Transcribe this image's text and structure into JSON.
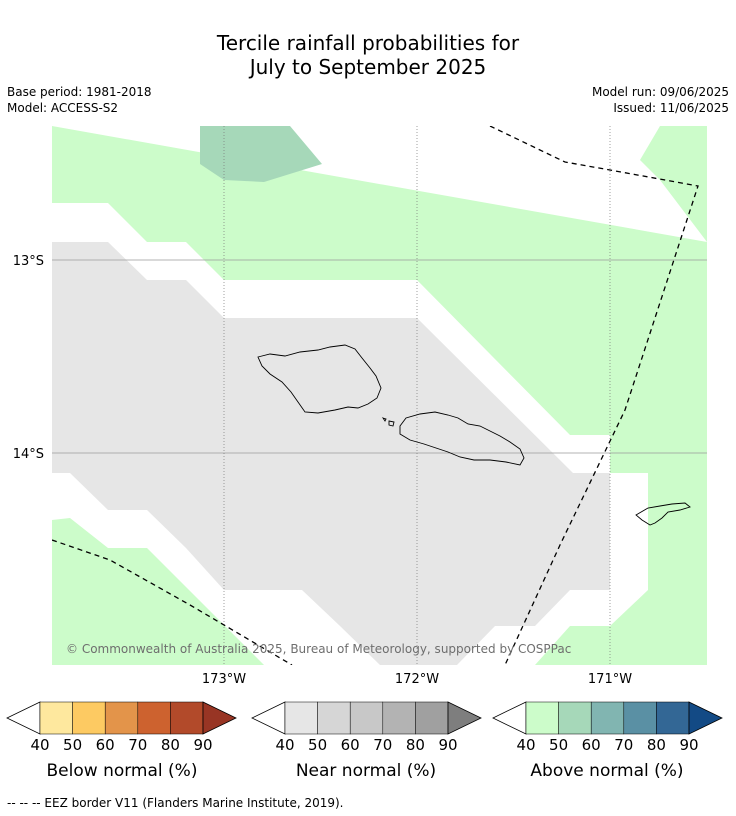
{
  "title_line1": "Tercile rainfall probabilities for",
  "title_line2": "July to September 2025",
  "base_period": "Base period: 1981-2018",
  "model": "Model: ACCESS-S2",
  "model_run": "Model run: 09/06/2025",
  "issued": "Issued: 11/06/2025",
  "copyright": "© Commonwealth of Australia 2025, Bureau of Meteorology, supported by COSPPac",
  "lat_labels": [
    "13°S",
    "14°S"
  ],
  "lon_labels": [
    "173°W",
    "172°W",
    "171°W"
  ],
  "colorbars": [
    {
      "label": "Below normal (%)",
      "ticks": [
        "40",
        "50",
        "60",
        "70",
        "80",
        "90"
      ],
      "colors": [
        "#fee89e",
        "#fdca62",
        "#e3944a",
        "#cd622f",
        "#b24a2a",
        "#983524"
      ]
    },
    {
      "label": "Near normal (%)",
      "ticks": [
        "40",
        "50",
        "60",
        "70",
        "80",
        "90"
      ],
      "colors": [
        "#e6e6e6",
        "#d6d6d6",
        "#c8c8c8",
        "#b3b3b3",
        "#a0a0a0",
        "#7e7e7e"
      ]
    },
    {
      "label": "Above normal (%)",
      "ticks": [
        "40",
        "50",
        "60",
        "70",
        "80",
        "90"
      ],
      "colors": [
        "#ccfcca",
        "#a6d8b9",
        "#81b5b1",
        "#5a90a4",
        "#336795",
        "#134a85"
      ]
    }
  ],
  "footnote": "--  --  -- EEZ border V11 (Flanders Marine Institute, 2019)."
}
